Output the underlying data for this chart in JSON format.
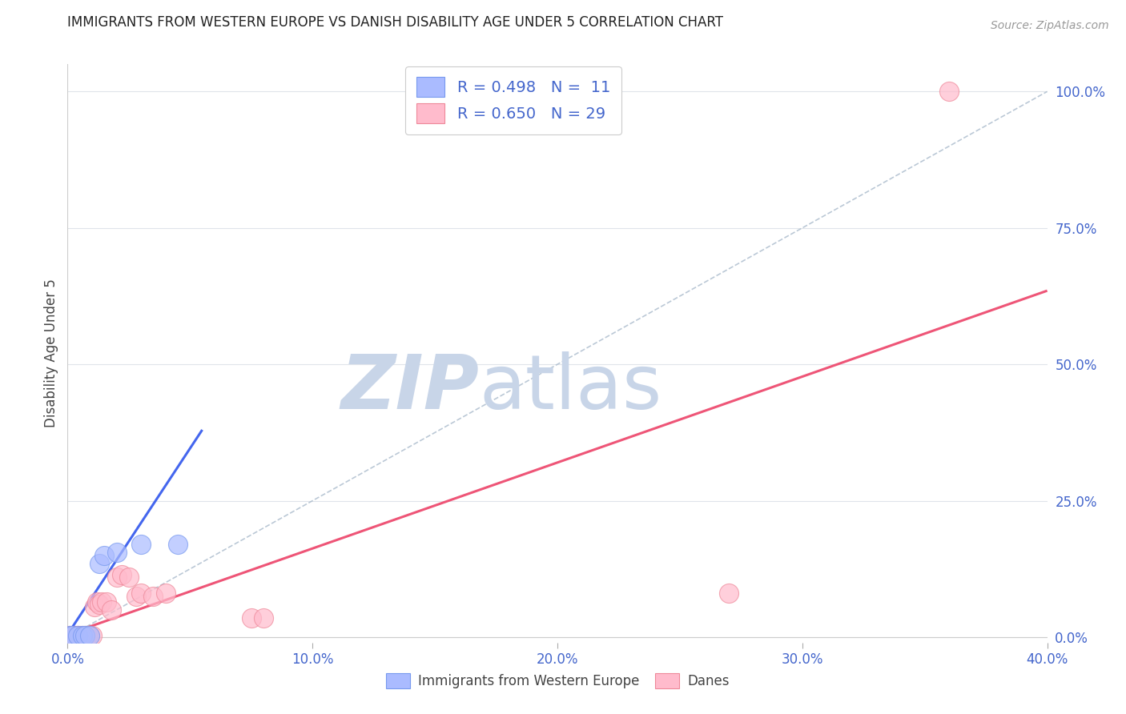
{
  "title": "IMMIGRANTS FROM WESTERN EUROPE VS DANISH DISABILITY AGE UNDER 5 CORRELATION CHART",
  "source": "Source: ZipAtlas.com",
  "ylabel": "Disability Age Under 5",
  "xlim": [
    0.0,
    0.4
  ],
  "ylim": [
    -0.01,
    1.05
  ],
  "xticks": [
    0.0,
    0.1,
    0.2,
    0.3,
    0.4
  ],
  "xtick_labels": [
    "0.0%",
    "10.0%",
    "20.0%",
    "30.0%",
    "40.0%"
  ],
  "yticks_right": [
    0.0,
    0.25,
    0.5,
    0.75,
    1.0
  ],
  "ytick_labels_right": [
    "0.0%",
    "25.0%",
    "50.0%",
    "75.0%",
    "100.0%"
  ],
  "blue_scatter_x": [
    0.001,
    0.002,
    0.004,
    0.006,
    0.007,
    0.009,
    0.013,
    0.015,
    0.02,
    0.03,
    0.045
  ],
  "blue_scatter_y": [
    0.003,
    0.003,
    0.003,
    0.003,
    0.003,
    0.003,
    0.135,
    0.15,
    0.155,
    0.17,
    0.17
  ],
  "pink_scatter_x": [
    0.001,
    0.002,
    0.003,
    0.004,
    0.004,
    0.005,
    0.006,
    0.007,
    0.007,
    0.008,
    0.009,
    0.01,
    0.011,
    0.012,
    0.013,
    0.014,
    0.016,
    0.018,
    0.02,
    0.022,
    0.025,
    0.028,
    0.03,
    0.035,
    0.04,
    0.075,
    0.08,
    0.27,
    0.36
  ],
  "pink_scatter_y": [
    0.003,
    0.003,
    0.003,
    0.003,
    0.003,
    0.003,
    0.003,
    0.003,
    0.003,
    0.003,
    0.003,
    0.003,
    0.055,
    0.065,
    0.06,
    0.065,
    0.065,
    0.05,
    0.11,
    0.115,
    0.11,
    0.075,
    0.08,
    0.075,
    0.08,
    0.035,
    0.035,
    0.08,
    1.0
  ],
  "blue_line_x": [
    0.0,
    0.055
  ],
  "blue_line_y": [
    0.005,
    0.38
  ],
  "pink_line_x": [
    0.0,
    0.4
  ],
  "pink_line_y": [
    0.005,
    0.635
  ],
  "diag_line_x": [
    0.0,
    0.4
  ],
  "diag_line_y": [
    0.0,
    1.0
  ],
  "bg_color": "#ffffff",
  "blue_dot_fill": "#aabbff",
  "blue_dot_edge": "#7799ee",
  "pink_dot_fill": "#ffbbcc",
  "pink_dot_edge": "#ee8899",
  "blue_line_color": "#4466ee",
  "pink_line_color": "#ee5577",
  "diag_color": "#aabbcc",
  "grid_color": "#e0e4ea",
  "title_color": "#222222",
  "axis_label_color": "#444444",
  "right_tick_color": "#4466cc",
  "bottom_tick_color": "#4466cc",
  "watermark_zip_color": "#c8d5e8",
  "watermark_atlas_color": "#c8d5e8",
  "legend_entry1": "R = 0.498   N =  11",
  "legend_entry2": "R = 0.650   N = 29",
  "footer_label1": "Immigrants from Western Europe",
  "footer_label2": "Danes"
}
